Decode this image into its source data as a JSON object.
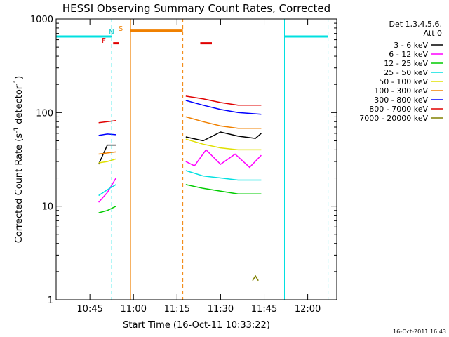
{
  "chart_data": {
    "type": "line",
    "title": "HESSI Observing Summary Count Rates, Corrected",
    "xlabel": "Start Time (16-Oct-11 10:33:22)",
    "ylabel_main": "Corrected Count Rate (s",
    "ylabel_sup1": "-1",
    "ylabel_mid": " detector",
    "ylabel_sup2": "-1",
    "ylabel_end": ")",
    "y_scale": "log",
    "ylim": [
      1,
      1000
    ],
    "xlim": [
      "10:33:22",
      "12:10:00"
    ],
    "x_ticks": [
      "10:45",
      "11:00",
      "11:15",
      "11:30",
      "11:45",
      "12:00"
    ],
    "y_ticks": [
      "1",
      "10",
      "100",
      "1000"
    ],
    "legend_header_1": "Det 1,3,4,5,6,",
    "legend_header_2": "Att 0",
    "timestamp": "16-Oct-2011 16:43",
    "flags": [
      {
        "label": "F",
        "color": "#e00000"
      },
      {
        "label": "N",
        "color": "#00c8c8"
      },
      {
        "label": "S",
        "color": "#f08000"
      }
    ],
    "series": [
      {
        "name": "3 - 6 keV",
        "color": "#000000",
        "segments": [
          {
            "x": [
              "10:48:00",
              "10:51:00",
              "10:54:00"
            ],
            "y": [
              28,
              45,
              45
            ]
          },
          {
            "x": [
              "11:18:00",
              "11:24:00",
              "11:30:00",
              "11:36:00",
              "11:42:00",
              "11:44:00"
            ],
            "y": [
              55,
              50,
              62,
              56,
              53,
              60
            ]
          }
        ]
      },
      {
        "name": "6 - 12 keV",
        "color": "#ff00ff",
        "segments": [
          {
            "x": [
              "10:48:00",
              "10:51:00",
              "10:54:00"
            ],
            "y": [
              11,
              14,
              20
            ]
          },
          {
            "x": [
              "11:18:00",
              "11:21:00",
              "11:25:00",
              "11:30:00",
              "11:35:00",
              "11:40:00",
              "11:44:00"
            ],
            "y": [
              30,
              27,
              40,
              28,
              36,
              26,
              35
            ]
          }
        ]
      },
      {
        "name": "12 - 25 keV",
        "color": "#00cc00",
        "segments": [
          {
            "x": [
              "10:48:00",
              "10:51:00",
              "10:54:00"
            ],
            "y": [
              8.5,
              9,
              10
            ]
          },
          {
            "x": [
              "11:18:00",
              "11:24:00",
              "11:30:00",
              "11:36:00",
              "11:44:00"
            ],
            "y": [
              17,
              15.5,
              14.5,
              13.5,
              13.5
            ]
          }
        ]
      },
      {
        "name": "25 - 50 keV",
        "color": "#00e0e0",
        "segments": [
          {
            "x": [
              "10:48:00",
              "10:51:00",
              "10:54:00"
            ],
            "y": [
              13,
              15,
              17
            ]
          },
          {
            "x": [
              "11:18:00",
              "11:24:00",
              "11:30:00",
              "11:36:00",
              "11:44:00"
            ],
            "y": [
              24,
              21,
              20,
              19,
              19
            ]
          }
        ]
      },
      {
        "name": "50 - 100 keV",
        "color": "#e0e000",
        "segments": [
          {
            "x": [
              "10:48:00",
              "10:51:00",
              "10:54:00"
            ],
            "y": [
              29,
              30,
              32
            ]
          },
          {
            "x": [
              "11:18:00",
              "11:24:00",
              "11:30:00",
              "11:36:00",
              "11:44:00"
            ],
            "y": [
              52,
              46,
              42,
              40,
              40
            ]
          }
        ]
      },
      {
        "name": "100 - 300 keV",
        "color": "#f08000",
        "segments": [
          {
            "x": [
              "10:48:00",
              "10:51:00",
              "10:54:00"
            ],
            "y": [
              36,
              37,
              38
            ]
          },
          {
            "x": [
              "11:18:00",
              "11:24:00",
              "11:30:00",
              "11:36:00",
              "11:44:00"
            ],
            "y": [
              90,
              80,
              72,
              68,
              68
            ]
          }
        ]
      },
      {
        "name": "300 - 800 keV",
        "color": "#0000ff",
        "segments": [
          {
            "x": [
              "10:48:00",
              "10:51:00",
              "10:54:00"
            ],
            "y": [
              57,
              59,
              58
            ]
          },
          {
            "x": [
              "11:18:00",
              "11:24:00",
              "11:30:00",
              "11:36:00",
              "11:44:00"
            ],
            "y": [
              135,
              120,
              108,
              100,
              96
            ]
          }
        ]
      },
      {
        "name": "800 - 7000 keV",
        "color": "#e00000",
        "segments": [
          {
            "x": [
              "10:48:00",
              "10:51:00",
              "10:54:00"
            ],
            "y": [
              78,
              80,
              82
            ]
          },
          {
            "x": [
              "11:18:00",
              "11:24:00",
              "11:30:00",
              "11:36:00",
              "11:44:00"
            ],
            "y": [
              150,
              140,
              128,
              120,
              120
            ]
          }
        ]
      },
      {
        "name": "7000 - 20000 keV",
        "color": "#808000",
        "segments": [
          {
            "x": [
              "11:41:00",
              "11:42:00",
              "11:43:00"
            ],
            "y": [
              1.6,
              1.8,
              1.6
            ]
          }
        ]
      }
    ],
    "vertical_lines": [
      {
        "x": "10:33:22",
        "color": "#00e0e0",
        "style": "solid"
      },
      {
        "x": "10:52:30",
        "color": "#00e0e0",
        "style": "dashed"
      },
      {
        "x": "10:59:00",
        "color": "#f08000",
        "style": "solid"
      },
      {
        "x": "11:17:00",
        "color": "#f08000",
        "style": "dashed"
      },
      {
        "x": "11:52:00",
        "color": "#00e0e0",
        "style": "solid"
      },
      {
        "x": "12:07:00",
        "color": "#00e0e0",
        "style": "dashed"
      }
    ],
    "bars": [
      {
        "x_start": "10:33:22",
        "x_end": "10:52:30",
        "y": 650,
        "color": "#00e0e0"
      },
      {
        "x_start": "10:59:00",
        "x_end": "11:17:00",
        "y": 750,
        "color": "#f08000"
      },
      {
        "x_start": "11:52:00",
        "x_end": "12:07:00",
        "y": 650,
        "color": "#00e0e0"
      },
      {
        "x_start": "10:53:00",
        "x_end": "10:55:00",
        "y": 550,
        "color": "#e00000"
      },
      {
        "x_start": "11:23:00",
        "x_end": "11:27:00",
        "y": 550,
        "color": "#e00000"
      }
    ]
  }
}
